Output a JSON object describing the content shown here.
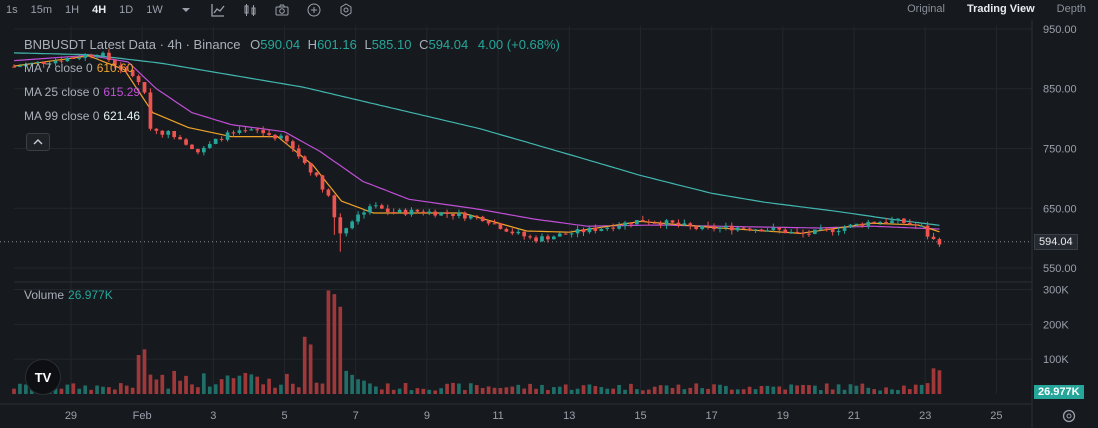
{
  "toolbar": {
    "timeframes": [
      "1s",
      "15m",
      "1H",
      "4H",
      "1D",
      "1W"
    ],
    "active_timeframe": "4H",
    "icons": [
      "chevron-down-icon",
      "indicator-icon",
      "candles-icon",
      "camera-icon",
      "add-icon",
      "gear-icon"
    ],
    "views": [
      "Original",
      "Trading View",
      "Depth"
    ],
    "active_view": "Trading View"
  },
  "legend": {
    "title": "BNBUSDT Latest Data · 4h · Binance",
    "o_label": "O",
    "o": "590.04",
    "h_label": "H",
    "h": "601.16",
    "l_label": "L",
    "l": "585.10",
    "c_label": "C",
    "c": "594.04",
    "change": "4.00 (+0.68%)",
    "ma7_label": "MA 7 close 0",
    "ma7": "610.60",
    "ma25_label": "MA 25 close 0",
    "ma25": "615.29",
    "ma99_label": "MA 99 close 0",
    "ma99": "621.46",
    "volume_label": "Volume",
    "volume": "26.977K"
  },
  "price_tags": {
    "last_price": "594.04",
    "last_volume": "26.977K"
  },
  "colors": {
    "up": "#26a69a",
    "down": "#ef5350",
    "ma7": "#f0a32a",
    "ma25": "#c04fd6",
    "ma99": "#42b7b0",
    "background": "#161a1e",
    "grid": "#23272d"
  },
  "chart_data": {
    "type": "candlestick",
    "price_axis": {
      "ticks": [
        550,
        650,
        750,
        850,
        950
      ],
      "labels": [
        "550.00",
        "650.00",
        "750.00",
        "850.00",
        "950.00"
      ],
      "range": [
        540,
        955
      ]
    },
    "volume_axis": {
      "ticks": [
        100,
        200,
        300
      ],
      "labels": [
        "100K",
        "200K",
        "300K"
      ],
      "range": [
        0,
        310
      ]
    },
    "x_axis": {
      "labels": [
        "29",
        "Feb",
        "3",
        "5",
        "7",
        "9",
        "11",
        "13",
        "15",
        "17",
        "19",
        "21",
        "23",
        "25"
      ],
      "label_day": [
        29,
        31,
        33,
        35,
        37,
        39,
        41,
        43,
        45,
        47,
        49,
        51,
        53,
        55
      ],
      "range_day": [
        27.4,
        56
      ]
    },
    "close_anchors": [
      [
        27.4,
        887
      ],
      [
        28.8,
        900
      ],
      [
        29.8,
        910
      ],
      [
        30.5,
        880
      ],
      [
        31.0,
        860
      ],
      [
        31.25,
        782
      ],
      [
        32,
        772
      ],
      [
        32.6,
        743
      ],
      [
        33.3,
        772
      ],
      [
        34.2,
        780
      ],
      [
        35,
        765
      ],
      [
        35.8,
        710
      ],
      [
        36.3,
        665
      ],
      [
        36.5,
        605
      ],
      [
        36.9,
        630
      ],
      [
        37.4,
        655
      ],
      [
        38,
        643
      ],
      [
        38.8,
        645
      ],
      [
        39.8,
        640
      ],
      [
        40.6,
        633
      ],
      [
        41.4,
        610
      ],
      [
        42,
        598
      ],
      [
        43,
        608
      ],
      [
        44,
        618
      ],
      [
        45,
        630
      ],
      [
        45.8,
        625
      ],
      [
        46.6,
        616
      ],
      [
        47.8,
        618
      ],
      [
        48.8,
        614
      ],
      [
        49.5,
        606
      ],
      [
        50.5,
        615
      ],
      [
        51.5,
        628
      ],
      [
        52.3,
        628
      ],
      [
        52.9,
        618
      ],
      [
        53.15,
        598
      ],
      [
        53.4,
        594.04
      ]
    ],
    "ma7_anchors": [
      [
        27.4,
        888
      ],
      [
        29.5,
        905
      ],
      [
        30.5,
        882
      ],
      [
        31.3,
        810
      ],
      [
        32.3,
        785
      ],
      [
        33.5,
        770
      ],
      [
        34.8,
        770
      ],
      [
        35.8,
        722
      ],
      [
        36.6,
        662
      ],
      [
        37.5,
        642
      ],
      [
        40,
        642
      ],
      [
        41.8,
        612
      ],
      [
        43,
        610
      ],
      [
        45,
        628
      ],
      [
        47,
        618
      ],
      [
        49.5,
        608
      ],
      [
        51.5,
        625
      ],
      [
        52.8,
        622
      ],
      [
        53.4,
        610.6
      ]
    ],
    "ma25_anchors": [
      [
        27.4,
        897
      ],
      [
        29.5,
        906
      ],
      [
        30.6,
        895
      ],
      [
        31.4,
        850
      ],
      [
        32.4,
        810
      ],
      [
        33.5,
        790
      ],
      [
        35,
        778
      ],
      [
        36,
        745
      ],
      [
        37.2,
        695
      ],
      [
        38.5,
        665
      ],
      [
        40.5,
        648
      ],
      [
        42,
        632
      ],
      [
        43.5,
        620
      ],
      [
        45.5,
        622
      ],
      [
        48,
        619
      ],
      [
        50,
        617
      ],
      [
        51.5,
        620
      ],
      [
        53.4,
        615.29
      ]
    ],
    "ma99_anchors": [
      [
        27.4,
        910
      ],
      [
        29.5,
        907
      ],
      [
        31.5,
        893
      ],
      [
        33.5,
        873
      ],
      [
        35.5,
        853
      ],
      [
        38,
        818
      ],
      [
        40.5,
        783
      ],
      [
        43,
        740
      ],
      [
        45,
        705
      ],
      [
        47,
        675
      ],
      [
        48.5,
        660
      ],
      [
        50.5,
        645
      ],
      [
        52,
        632
      ],
      [
        53.4,
        621.46
      ]
    ],
    "volume_spikes": [
      [
        31,
        125
      ],
      [
        35.6,
        160
      ],
      [
        36.3,
        305
      ],
      [
        36.55,
        255
      ],
      [
        53.3,
        85
      ]
    ]
  }
}
